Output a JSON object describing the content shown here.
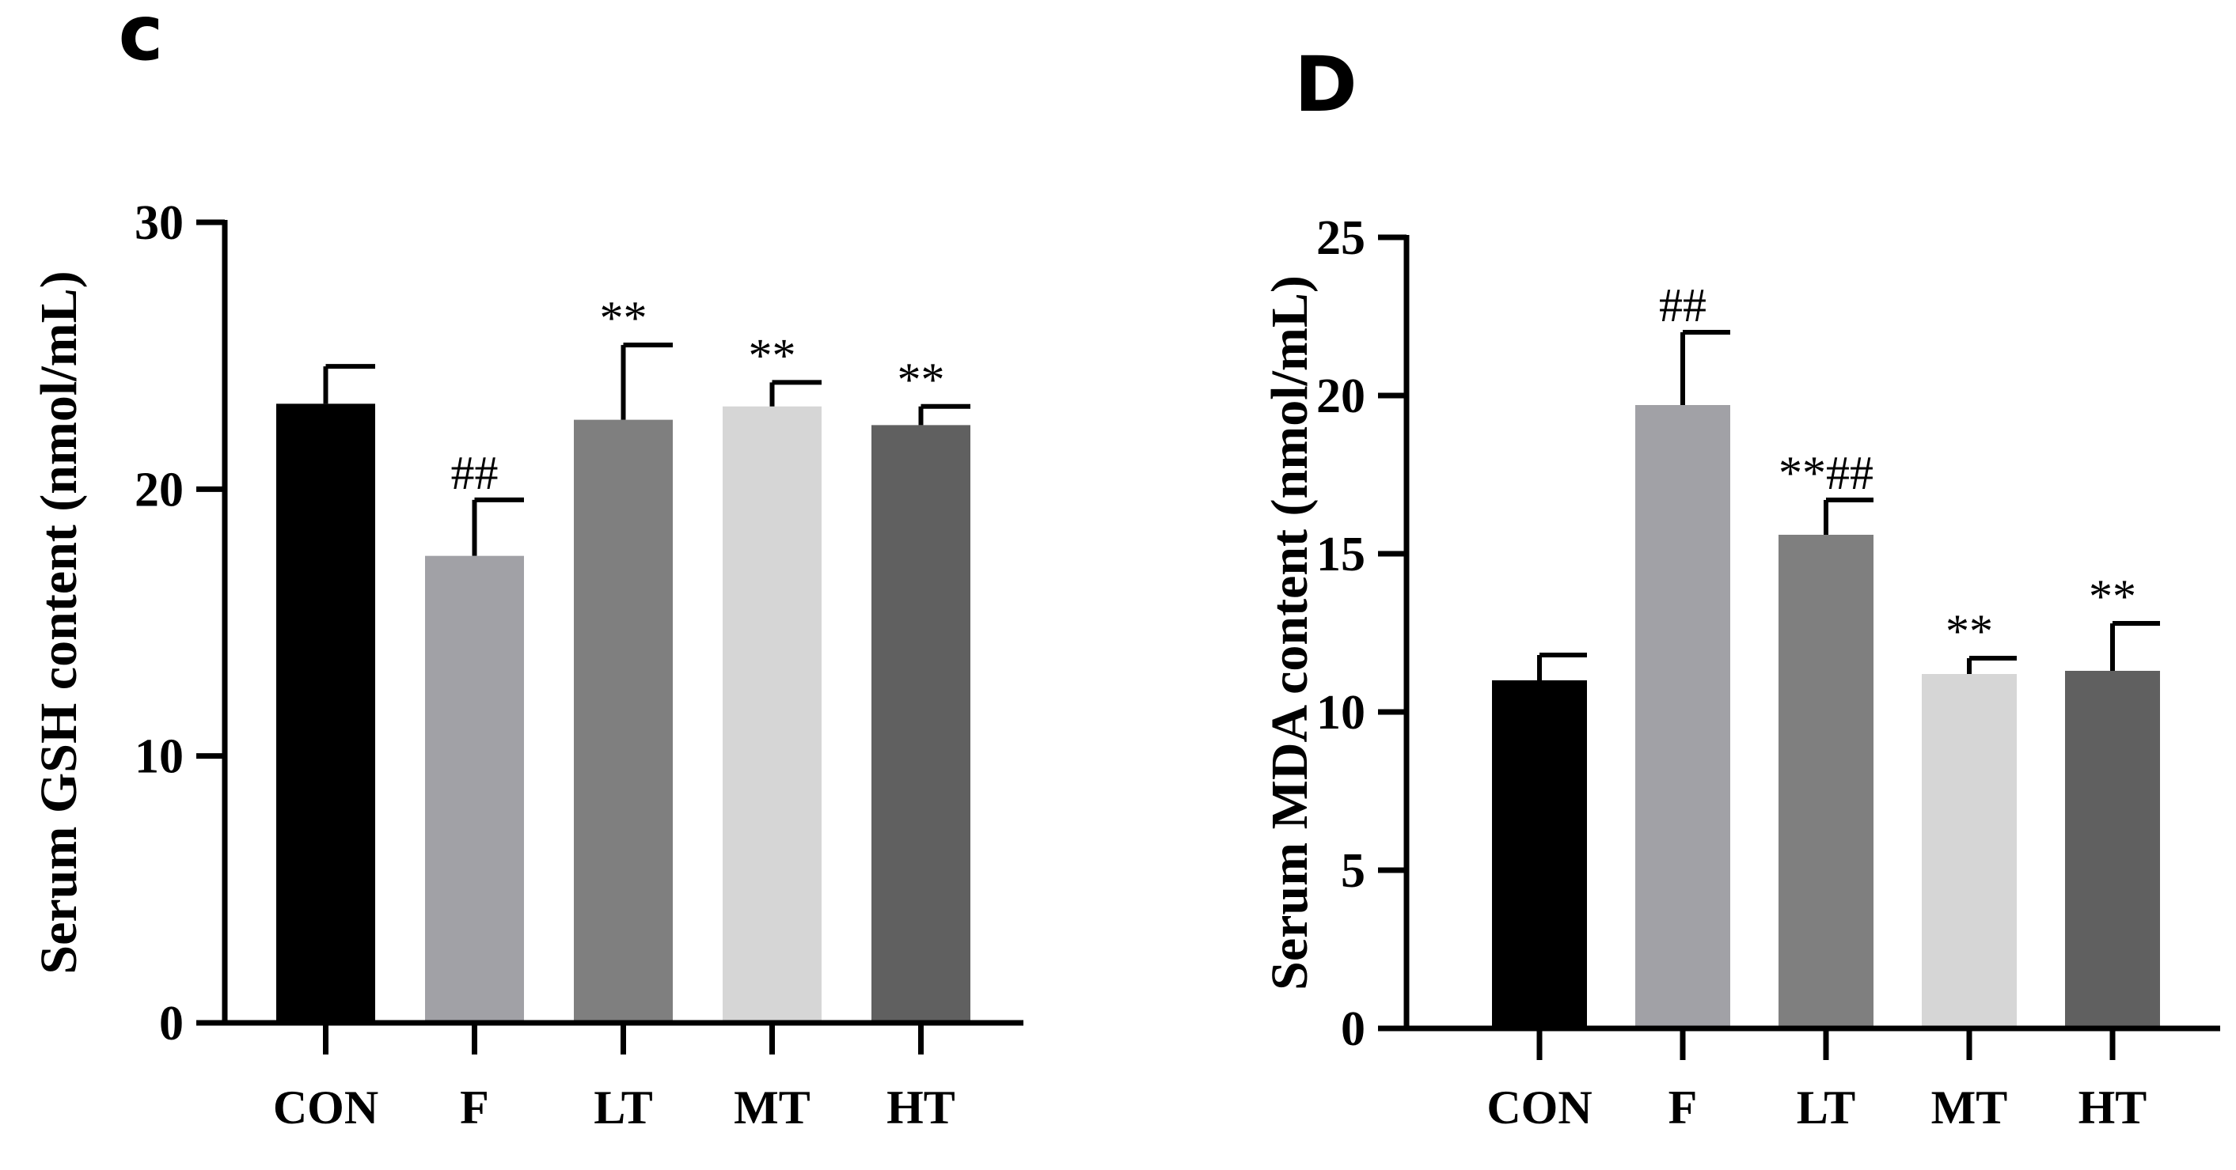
{
  "chart_data": [
    {
      "type": "bar",
      "panel_label": "c",
      "title": "",
      "xlabel": "",
      "ylabel": "Serum GSH content (nmol/mL)",
      "ylim": [
        0,
        30
      ],
      "yticks": [
        0,
        10,
        20,
        30
      ],
      "categories": [
        "CON",
        "F",
        "LT",
        "MT",
        "HT"
      ],
      "values": [
        23.2,
        17.5,
        22.6,
        23.1,
        22.4
      ],
      "errors": [
        1.4,
        2.1,
        2.8,
        0.9,
        0.7
      ],
      "bar_colors": [
        "#000000",
        "#a1a1a6",
        "#7f7f7f",
        "#d6d6d6",
        "#606060"
      ],
      "significance": [
        "",
        "##",
        "**",
        "**",
        "**"
      ]
    },
    {
      "type": "bar",
      "panel_label": "D",
      "title": "",
      "xlabel": "",
      "ylabel": "Serum MDA content (nmol/mL)",
      "ylim": [
        0,
        25
      ],
      "yticks": [
        0,
        5,
        10,
        15,
        20,
        25
      ],
      "categories": [
        "CON",
        "F",
        "LT",
        "MT",
        "HT"
      ],
      "values": [
        11.0,
        19.7,
        15.6,
        11.2,
        11.3
      ],
      "errors": [
        0.8,
        2.3,
        1.1,
        0.5,
        1.5
      ],
      "bar_colors": [
        "#000000",
        "#a1a1a6",
        "#7f7f7f",
        "#d6d6d6",
        "#606060"
      ],
      "significance": [
        "",
        "##",
        "**##",
        "**",
        "**"
      ]
    }
  ]
}
